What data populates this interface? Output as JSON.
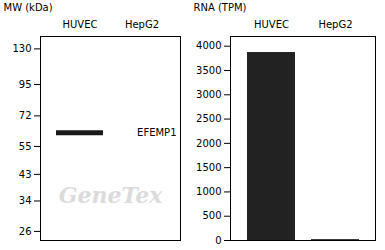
{
  "chart_data": [
    {
      "type": "blot",
      "categories": [
        "HUVEC",
        "HepG2"
      ],
      "values": [
        62,
        null
      ],
      "color": "#1a1a1a",
      "ylabel": "MW (kDa)",
      "log": "y",
      "ylim": [
        24,
        145
      ],
      "yticks": [
        130,
        95,
        72,
        55,
        43,
        34,
        26
      ],
      "annotations": [
        {
          "text": "EFEMP1",
          "y": 62
        },
        {
          "text": "GeneTex",
          "color": "#cccccc"
        }
      ]
    },
    {
      "type": "bar",
      "categories": [
        "HUVEC",
        "HepG2"
      ],
      "values": [
        3870,
        18
      ],
      "color": "#222222",
      "ylabel": "RNA (TPM)",
      "ylim": [
        0,
        4200
      ],
      "yticks": [
        0,
        500,
        1000,
        1500,
        2000,
        2500,
        3000,
        3500,
        4000
      ]
    }
  ]
}
